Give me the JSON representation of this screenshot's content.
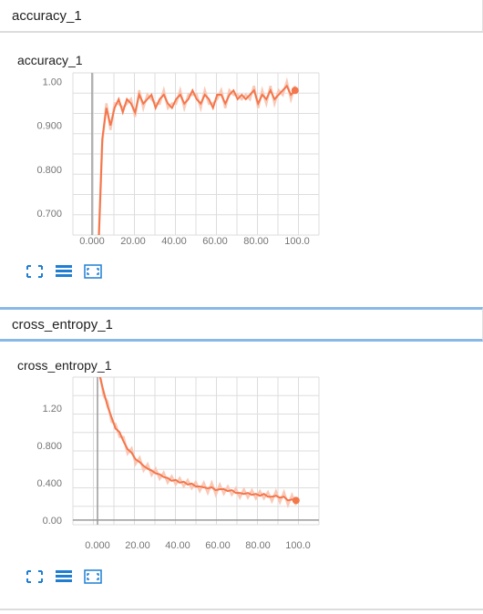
{
  "sections": [
    {
      "header": "accuracy_1",
      "card_title": "accuracy_1"
    },
    {
      "header": "cross_entropy_1",
      "card_title": "cross_entropy_1"
    }
  ],
  "icons": [
    "fit-domain-icon",
    "data-table-icon",
    "expand-chart-icon"
  ],
  "colors": {
    "line": "#f4764b",
    "line_faint": "#f9c9b7",
    "icon": "#1f7ed2",
    "grid": "#dddddd"
  },
  "chart_data": [
    {
      "type": "line",
      "title": "accuracy_1",
      "xlim": [
        0,
        100
      ],
      "ylim": [
        0.65,
        1.02
      ],
      "x_ticks": [
        "0.000",
        "20.00",
        "40.00",
        "60.00",
        "80.00",
        "100.0"
      ],
      "y_ticks": [
        "0.700",
        "0.800",
        "0.900",
        "1.00"
      ],
      "series": [
        {
          "x": [
            3,
            5,
            7,
            9,
            11,
            13,
            15,
            17,
            19,
            21,
            23,
            25,
            27,
            29,
            31,
            33,
            35,
            37,
            39,
            41,
            43,
            45,
            47,
            49,
            51,
            53,
            55,
            57,
            59,
            61,
            63,
            65,
            67,
            69,
            71,
            73,
            75,
            77,
            79,
            81,
            83,
            85,
            87,
            89,
            91,
            93,
            95,
            97,
            99
          ],
          "y": [
            0.6,
            0.87,
            0.94,
            0.9,
            0.94,
            0.96,
            0.93,
            0.96,
            0.95,
            0.93,
            0.97,
            0.95,
            0.96,
            0.97,
            0.94,
            0.96,
            0.97,
            0.95,
            0.94,
            0.96,
            0.97,
            0.95,
            0.96,
            0.98,
            0.96,
            0.95,
            0.97,
            0.96,
            0.94,
            0.97,
            0.97,
            0.95,
            0.97,
            0.98,
            0.96,
            0.97,
            0.96,
            0.97,
            0.98,
            0.95,
            0.97,
            0.96,
            0.98,
            0.96,
            0.97,
            0.98,
            0.99,
            0.97,
            0.98
          ]
        }
      ]
    },
    {
      "type": "line",
      "title": "cross_entropy_1",
      "xlim": [
        0,
        100
      ],
      "ylim": [
        -0.05,
        1.53
      ],
      "x_ticks": [
        "0.000",
        "20.00",
        "40.00",
        "60.00",
        "80.00",
        "100.0"
      ],
      "y_ticks": [
        "0.00",
        "0.400",
        "0.800",
        "1.20"
      ],
      "series": [
        {
          "x": [
            1,
            3,
            5,
            7,
            9,
            11,
            13,
            15,
            17,
            19,
            21,
            23,
            25,
            27,
            29,
            31,
            33,
            35,
            37,
            39,
            41,
            43,
            45,
            47,
            49,
            51,
            53,
            55,
            57,
            59,
            61,
            63,
            65,
            67,
            69,
            71,
            73,
            75,
            77,
            79,
            81,
            83,
            85,
            87,
            89,
            91,
            93,
            95,
            97,
            99
          ],
          "y": [
            1.55,
            1.38,
            1.22,
            1.1,
            0.98,
            0.94,
            0.84,
            0.76,
            0.72,
            0.65,
            0.62,
            0.58,
            0.55,
            0.53,
            0.5,
            0.49,
            0.46,
            0.45,
            0.42,
            0.43,
            0.4,
            0.41,
            0.38,
            0.39,
            0.36,
            0.36,
            0.35,
            0.34,
            0.35,
            0.32,
            0.33,
            0.33,
            0.31,
            0.32,
            0.29,
            0.29,
            0.28,
            0.29,
            0.27,
            0.28,
            0.26,
            0.28,
            0.25,
            0.25,
            0.26,
            0.24,
            0.25,
            0.21,
            0.22,
            0.21
          ]
        }
      ]
    }
  ]
}
